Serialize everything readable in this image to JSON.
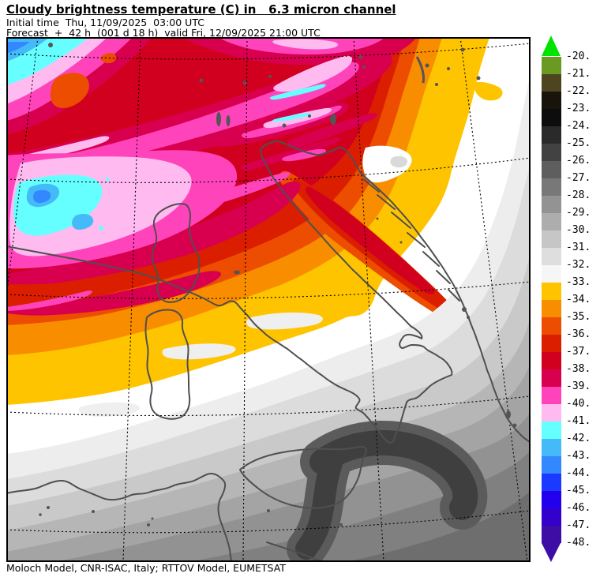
{
  "header": {
    "title": "Cloudy brightness temperature (C) in   6.3 micron channel",
    "initial_time_line": "Initial time  Thu, 11/09/2025  03:00 UTC",
    "forecast_line": "Forecast  +  42 h  (001 d 18 h)  valid Fri, 12/09/2025 21:00 UTC"
  },
  "footer": {
    "credit": "Moloch Model, CNR-ISAC, Italy; RTTOV Model, EUMETSAT"
  },
  "colorbar": {
    "labels": [
      "-20.",
      "-21.",
      "-22.",
      "-23.",
      "-24.",
      "-25.",
      "-26.",
      "-27.",
      "-28.",
      "-29.",
      "-30.",
      "-31.",
      "-32.",
      "-33.",
      "-34.",
      "-35.",
      "-36.",
      "-37.",
      "-38.",
      "-39.",
      "-40.",
      "-41.",
      "-42.",
      "-43.",
      "-44.",
      "-45.",
      "-46.",
      "-47.",
      "-48."
    ],
    "segment_colors": [
      "#6B9A22",
      "#4D4520",
      "#18140C",
      "#0D0D0D",
      "#2A2A2A",
      "#424242",
      "#5E5E5E",
      "#787878",
      "#939393",
      "#ADADAD",
      "#C6C6C6",
      "#DEDEDE",
      "#F6F6F6",
      "#FFC400",
      "#F98D00",
      "#EC4D00",
      "#DB1E00",
      "#D0001E",
      "#D8004E",
      "#FF44BB",
      "#FFBBF0",
      "#66FFFF",
      "#44BBF8",
      "#3388FF",
      "#1A3AFF",
      "#2200EE",
      "#3300CC",
      "#3D0DA5"
    ],
    "arrow_top_color": "#00E400",
    "arrow_bottom_color": "#3D0DA5"
  },
  "map": {
    "border_color": "#000000",
    "coast_color": "#4F4F4F",
    "graticule_color": "#000000",
    "palette": {
      "amber": "#FFC400",
      "orange": "#F98D00",
      "orange_red": "#EC4D00",
      "red": "#DB1E00",
      "deep_red": "#D0001E",
      "crimson": "#D8004E",
      "magenta": "#FF44BB",
      "pale_pink": "#FFBBF0",
      "cyan": "#66FFFF",
      "sky_blue": "#44BBF8",
      "blue": "#3388FF",
      "gray_steps": [
        "#EDEDED",
        "#DCDCDC",
        "#C9C9C9",
        "#B6B6B6",
        "#A4A4A4",
        "#929292",
        "#808080",
        "#6E6E6E",
        "#3F3F3F"
      ]
    }
  },
  "chart_data": {
    "type": "heatmap",
    "title": "Cloudy brightness temperature (C) in 6.3 micron channel",
    "model": "Moloch Model, CNR-ISAC, Italy; RTTOV Model, EUMETSAT",
    "initial_time": "Thu, 11/09/2025 03:00 UTC",
    "forecast_lead": "+42 h (001 d 18 h)",
    "valid_time": "Fri, 12/09/2025 21:00 UTC",
    "units": "degrees C",
    "legend_position": "right",
    "colorbar_levels": [
      -20,
      -21,
      -22,
      -23,
      -24,
      -25,
      -26,
      -27,
      -28,
      -29,
      -30,
      -31,
      -32,
      -33,
      -34,
      -35,
      -36,
      -37,
      -38,
      -39,
      -40,
      -41,
      -42,
      -43,
      -44,
      -45,
      -46,
      -47,
      -48
    ],
    "colorbar_colors": [
      "#6B9A22",
      "#4D4520",
      "#18140C",
      "#0D0D0D",
      "#2A2A2A",
      "#424242",
      "#5E5E5E",
      "#787878",
      "#939393",
      "#ADADAD",
      "#C6C6C6",
      "#DEDEDE",
      "#F6F6F6",
      "#FFC400",
      "#F98D00",
      "#EC4D00",
      "#DB1E00",
      "#D0001E",
      "#D8004E",
      "#FF44BB",
      "#FFBBF0",
      "#66FFFF",
      "#44BBF8",
      "#3388FF",
      "#1A3AFF",
      "#2200EE",
      "#3300CC",
      "#3D0DA5"
    ],
    "domain": "Central Mediterranean / Italy (rotated lat-lon grid with dashed graticule)",
    "field_summary": [
      {
        "region": "upper-left corner and Gulf of Lion cold pool",
        "approx_value_C": -42,
        "rendering": "cyan patches with blue cores inside pale-pink surround"
      },
      {
        "region": "northwest quadrant (Alps, Po valley)",
        "approx_value_C": -38,
        "rendering": "deep red field with WSW-ENE crimson/magenta/pale-pink streak bundles"
      },
      {
        "region": "north Adriatic / Croatia",
        "approx_value_C": -35,
        "rendering": "orange-red tongue along Dalmatian islands inside amber field, white gap NE of Istria"
      },
      {
        "region": "top-right corner",
        "approx_value_C": -33,
        "rendering": "amber and orange with white/light gray along right edge"
      },
      {
        "region": "central band Sardinia to Apulia",
        "approx_value_C": -32.5,
        "rendering": "amber-to-white transition band, golden blob near Campania"
      },
      {
        "region": "southern third (Sicily channel, North Africa)",
        "approx_value_C": -28,
        "rendering": "light-to-mid grays darkening southeastward"
      },
      {
        "region": "Ionian Sea arc",
        "approx_value_C": -25,
        "rendering": "darkest gray crescent south of Calabria"
      },
      {
        "region": "bottom-right corner",
        "approx_value_C": -26,
        "rendering": "dark gray"
      }
    ]
  }
}
